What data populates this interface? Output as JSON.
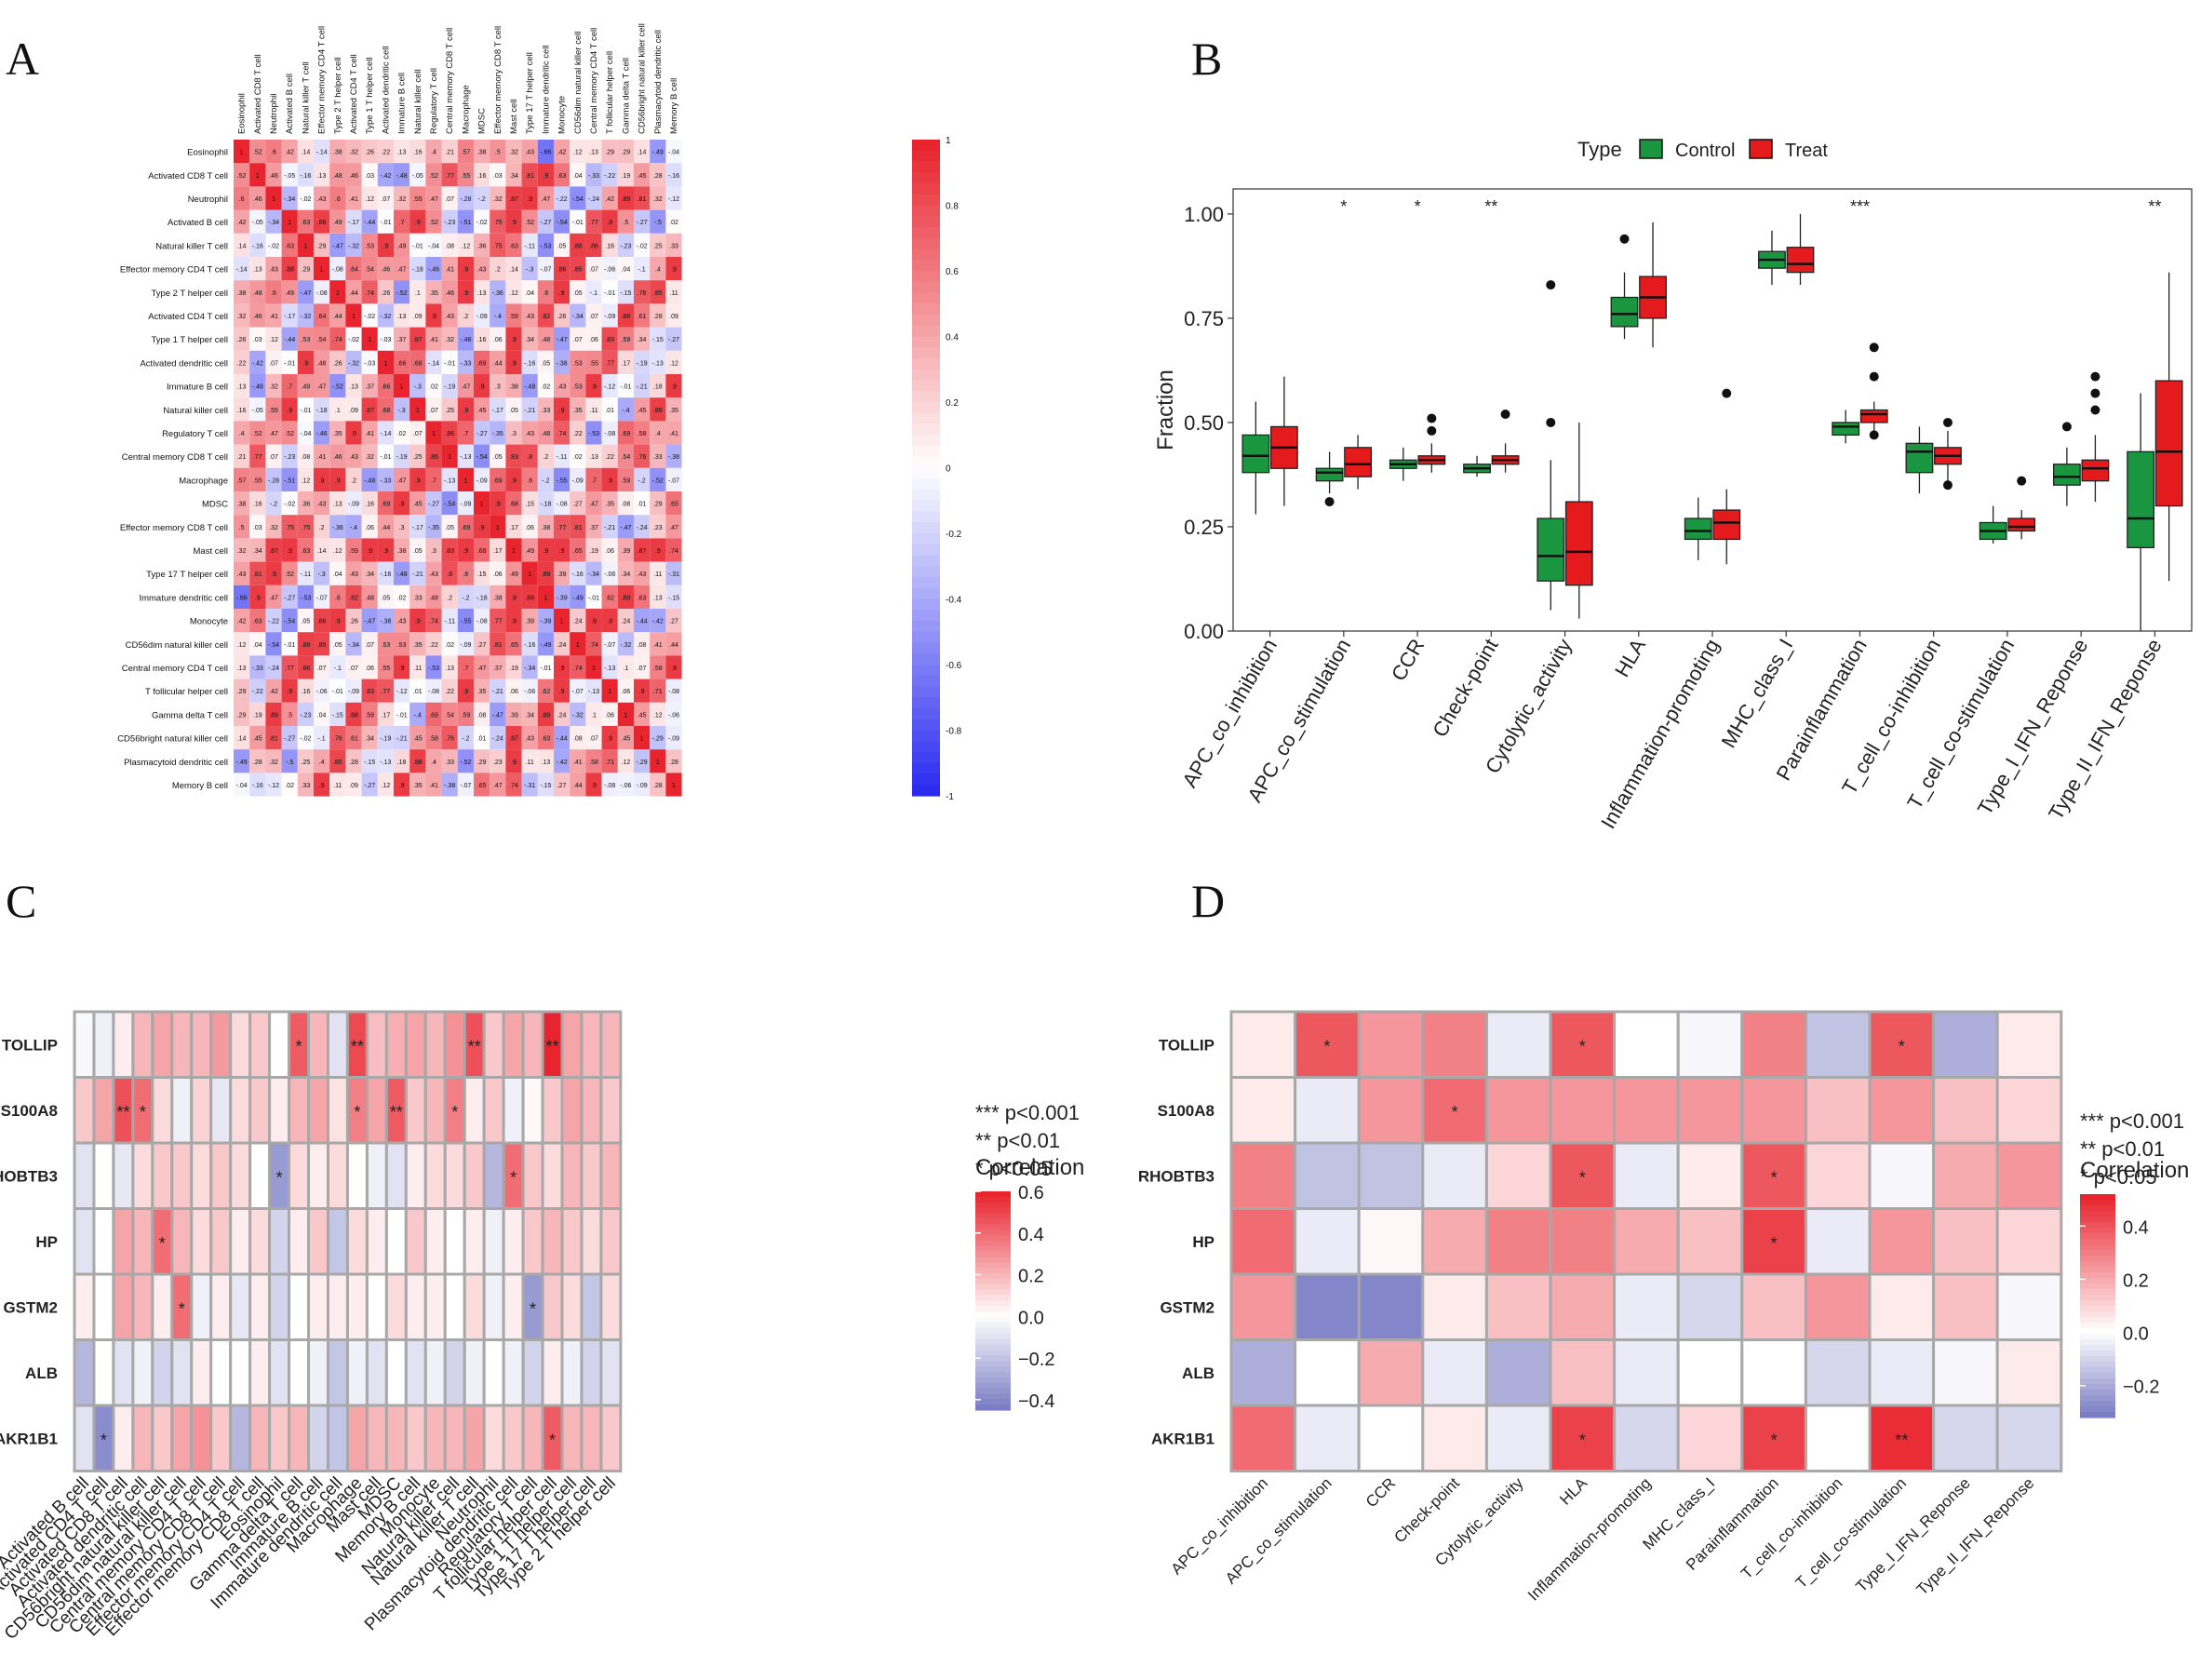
{
  "panels": {
    "a": "A",
    "b": "B",
    "c": "C",
    "d": "D"
  },
  "colors": {
    "pos": "#e8242e",
    "neg": "#2b2bf0",
    "control": "#1a9641",
    "treat": "#e41a1c",
    "lowC": "#7b7ec4"
  },
  "chart_data": [
    {
      "type": "heatmap",
      "panel": "A",
      "title": "",
      "cells": [
        "Eosinophil",
        "Activated CD8 T cell",
        "Neutrophil",
        "Activated B cell",
        "Natural killer T cell",
        "Effector memory CD4 T cell",
        "Type 2 T helper cell",
        "Activated CD4 T cell",
        "Type 1 T helper cell",
        "Activated dendritic cell",
        "Immature  B cell",
        "Natural killer cell",
        "Regulatory T cell",
        "Central memory CD8 T cell",
        "Macrophage",
        "MDSC",
        "Effector memory CD8 T cell",
        "Mast cell",
        "Type 17 T helper cell",
        "Immature dendritic cell",
        "Monocyte",
        "CD56dim natural killer cell",
        "Central memory CD4 T cell",
        "T follicular helper cell",
        "Gamma delta T cell",
        "CD56bright natural killer cell",
        "Plasmacytoid dendritic cell",
        "Memory B cell"
      ],
      "row0_values": [
        1,
        0.52,
        0.6,
        0.42,
        0.14,
        -0.14,
        0.38,
        0.32,
        0.26,
        0.22,
        0.13,
        0.16,
        0.4,
        0.21,
        0.57,
        0.38,
        0.5,
        0.32,
        0.43,
        -0.66,
        0.42,
        0.12,
        0.13,
        0.29,
        0.29,
        0.14,
        -0.49,
        -0.04
      ],
      "legend_ticks": [
        "1",
        "0.8",
        "0.6",
        "0.4",
        "0.2",
        "0",
        "-0.2",
        "-0.4",
        "-0.6",
        "-0.8",
        "-1"
      ],
      "range": [
        -1,
        1
      ]
    },
    {
      "type": "box",
      "panel": "B",
      "ylabel": "Fraction",
      "legend_title": "Type",
      "legend": [
        "Control",
        "Treat"
      ],
      "yticks": [
        "1.00",
        "0.75",
        "0.50",
        "0.25",
        "0.00"
      ],
      "ylim": [
        0,
        1.06
      ],
      "categories": [
        "APC_co_inhibition",
        "APC_co_stimulation",
        "CCR",
        "Check-point",
        "Cytolytic_activity",
        "HLA",
        "Inflammation-promoting",
        "MHC_class_I",
        "Parainflammation",
        "T_cell_co-inhibition",
        "T_cell_co-stimulation",
        "Type_I_IFN_Reponse",
        "Type_II_IFN_Reponse"
      ],
      "significance": [
        "",
        "*",
        "*",
        "**",
        "",
        "",
        "",
        "",
        "***",
        "",
        "",
        "",
        "**"
      ],
      "control": [
        {
          "min": 0.28,
          "q1": 0.38,
          "med": 0.42,
          "q3": 0.47,
          "max": 0.55,
          "out": []
        },
        {
          "min": 0.33,
          "q1": 0.36,
          "med": 0.38,
          "q3": 0.39,
          "max": 0.43,
          "out": [
            0.31
          ]
        },
        {
          "min": 0.36,
          "q1": 0.39,
          "med": 0.4,
          "q3": 0.41,
          "max": 0.44,
          "out": []
        },
        {
          "min": 0.37,
          "q1": 0.38,
          "med": 0.39,
          "q3": 0.4,
          "max": 0.42,
          "out": []
        },
        {
          "min": 0.05,
          "q1": 0.12,
          "med": 0.18,
          "q3": 0.27,
          "max": 0.41,
          "out": [
            0.5,
            0.83
          ]
        },
        {
          "min": 0.7,
          "q1": 0.73,
          "med": 0.76,
          "q3": 0.8,
          "max": 0.86,
          "out": [
            0.94
          ]
        },
        {
          "min": 0.17,
          "q1": 0.22,
          "med": 0.24,
          "q3": 0.27,
          "max": 0.32,
          "out": []
        },
        {
          "min": 0.83,
          "q1": 0.87,
          "med": 0.89,
          "q3": 0.91,
          "max": 0.96,
          "out": []
        },
        {
          "min": 0.45,
          "q1": 0.47,
          "med": 0.49,
          "q3": 0.5,
          "max": 0.53,
          "out": []
        },
        {
          "min": 0.33,
          "q1": 0.38,
          "med": 0.43,
          "q3": 0.45,
          "max": 0.49,
          "out": []
        },
        {
          "min": 0.21,
          "q1": 0.22,
          "med": 0.24,
          "q3": 0.26,
          "max": 0.3,
          "out": []
        },
        {
          "min": 0.3,
          "q1": 0.35,
          "med": 0.37,
          "q3": 0.4,
          "max": 0.44,
          "out": [
            0.49
          ]
        },
        {
          "min": 0.0,
          "q1": 0.2,
          "med": 0.27,
          "q3": 0.43,
          "max": 0.57,
          "out": []
        }
      ],
      "treat": [
        {
          "min": 0.3,
          "q1": 0.39,
          "med": 0.44,
          "q3": 0.49,
          "max": 0.61,
          "out": []
        },
        {
          "min": 0.34,
          "q1": 0.37,
          "med": 0.4,
          "q3": 0.44,
          "max": 0.47,
          "out": []
        },
        {
          "min": 0.38,
          "q1": 0.4,
          "med": 0.41,
          "q3": 0.42,
          "max": 0.45,
          "out": [
            0.48,
            0.51
          ]
        },
        {
          "min": 0.38,
          "q1": 0.4,
          "med": 0.41,
          "q3": 0.42,
          "max": 0.45,
          "out": [
            0.52
          ]
        },
        {
          "min": 0.03,
          "q1": 0.11,
          "med": 0.19,
          "q3": 0.31,
          "max": 0.5,
          "out": []
        },
        {
          "min": 0.68,
          "q1": 0.75,
          "med": 0.8,
          "q3": 0.85,
          "max": 0.98,
          "out": []
        },
        {
          "min": 0.16,
          "q1": 0.22,
          "med": 0.26,
          "q3": 0.29,
          "max": 0.34,
          "out": [
            0.57
          ]
        },
        {
          "min": 0.83,
          "q1": 0.86,
          "med": 0.88,
          "q3": 0.92,
          "max": 1.0,
          "out": []
        },
        {
          "min": 0.48,
          "q1": 0.5,
          "med": 0.52,
          "q3": 0.53,
          "max": 0.55,
          "out": [
            0.47,
            0.61,
            0.68
          ]
        },
        {
          "min": 0.36,
          "q1": 0.4,
          "med": 0.42,
          "q3": 0.44,
          "max": 0.48,
          "out": [
            0.35,
            0.5
          ]
        },
        {
          "min": 0.22,
          "q1": 0.24,
          "med": 0.25,
          "q3": 0.27,
          "max": 0.29,
          "out": [
            0.36
          ]
        },
        {
          "min": 0.31,
          "q1": 0.36,
          "med": 0.39,
          "q3": 0.41,
          "max": 0.47,
          "out": [
            0.53,
            0.57,
            0.61
          ]
        },
        {
          "min": 0.12,
          "q1": 0.3,
          "med": 0.43,
          "q3": 0.6,
          "max": 0.86,
          "out": []
        }
      ]
    },
    {
      "type": "heatmap",
      "panel": "C",
      "rows": [
        "TOLLIP",
        "S100A8",
        "RHOBTB3",
        "HP",
        "GSTM2",
        "ALB",
        "AKR1B1"
      ],
      "cols": [
        "Activated B cell",
        "Activated CD4 T cell",
        "Activated CD8 T cell",
        "Activated dendritic cell",
        "CD56bright natural killer cell",
        "CD56dim natural killer cell",
        "Central memory CD4 T cell",
        "Central memory CD8 T cell",
        "Effector memory CD4 T cell",
        "Effector memory CD8 T cell",
        "Eosinophil",
        "Gamma delta T cell",
        "Immature  B cell",
        "Immature dendritic cell",
        "Macrophage",
        "Mast cell",
        "MDSC",
        "Memory B cell",
        "Monocyte",
        "Natural killer cell",
        "Natural killer T cell",
        "Neutrophil",
        "Plasmacytoid dendritic cell",
        "Regulatory T cell",
        "T follicular helper cell",
        "Type 1 T helper cell",
        "Type 17 T helper cell",
        "Type 2 T helper cell"
      ],
      "values": [
        [
          -0.02,
          -0.05,
          0.05,
          0.2,
          0.25,
          0.2,
          0.2,
          0.28,
          0.1,
          0.15,
          0.0,
          0.45,
          0.2,
          -0.1,
          0.5,
          0.18,
          0.22,
          0.25,
          0.2,
          0.3,
          0.48,
          0.15,
          0.25,
          0.2,
          0.6,
          0.25,
          0.2,
          0.2
        ],
        [
          0.15,
          0.25,
          0.48,
          0.4,
          0.1,
          -0.05,
          0.12,
          -0.08,
          0.1,
          0.15,
          0.05,
          0.2,
          0.25,
          0.08,
          0.35,
          0.25,
          0.45,
          0.15,
          0.2,
          0.35,
          0.05,
          0.15,
          -0.05,
          0.02,
          0.15,
          0.25,
          0.2,
          0.15
        ],
        [
          -0.1,
          0.0,
          -0.08,
          0.1,
          0.15,
          0.15,
          0.1,
          0.15,
          0.1,
          0.0,
          -0.35,
          0.1,
          0.05,
          0.1,
          0.0,
          -0.05,
          -0.1,
          0.05,
          0.1,
          0.1,
          0.15,
          -0.25,
          0.4,
          0.15,
          0.1,
          0.2,
          0.15,
          0.2
        ],
        [
          -0.1,
          0.0,
          0.25,
          0.2,
          0.4,
          0.2,
          0.1,
          0.15,
          0.05,
          0.1,
          -0.15,
          0.05,
          0.15,
          -0.2,
          0.1,
          0.05,
          0.0,
          0.15,
          0.05,
          0.0,
          0.05,
          -0.05,
          0.05,
          0.15,
          0.2,
          0.15,
          0.1,
          0.15
        ],
        [
          0.05,
          0.0,
          0.25,
          0.2,
          0.05,
          0.4,
          -0.05,
          0.05,
          -0.08,
          0.05,
          -0.15,
          0.0,
          0.05,
          0.05,
          0.05,
          0.0,
          0.1,
          0.05,
          0.05,
          0.0,
          0.1,
          -0.05,
          0.05,
          -0.35,
          0.15,
          0.1,
          -0.2,
          0.1
        ],
        [
          -0.25,
          0.0,
          -0.1,
          -0.05,
          -0.15,
          -0.1,
          0.05,
          0.0,
          0.0,
          0.05,
          -0.1,
          0.0,
          -0.05,
          -0.2,
          -0.05,
          -0.1,
          0.0,
          -0.1,
          -0.05,
          -0.15,
          -0.05,
          0.0,
          -0.05,
          -0.15,
          0.05,
          -0.05,
          -0.15,
          -0.1
        ],
        [
          -0.1,
          -0.4,
          0.05,
          0.2,
          0.15,
          0.25,
          0.3,
          0.15,
          -0.25,
          0.2,
          0.15,
          0.2,
          -0.15,
          -0.2,
          0.25,
          0.2,
          0.2,
          0.15,
          0.2,
          0.2,
          0.25,
          0.1,
          0.15,
          0.2,
          0.45,
          0.2,
          0.2,
          0.15
        ]
      ],
      "stars": [
        [
          "TOLLIP",
          11,
          "*"
        ],
        [
          "TOLLIP",
          14,
          "**"
        ],
        [
          "TOLLIP",
          20,
          "**"
        ],
        [
          "TOLLIP",
          24,
          "**"
        ],
        [
          "S100A8",
          2,
          "**"
        ],
        [
          "S100A8",
          3,
          "*"
        ],
        [
          "S100A8",
          14,
          "*"
        ],
        [
          "S100A8",
          16,
          "**"
        ],
        [
          "S100A8",
          19,
          "*"
        ],
        [
          "RHOBTB3",
          10,
          "*"
        ],
        [
          "RHOBTB3",
          22,
          "*"
        ],
        [
          "HP",
          4,
          "*"
        ],
        [
          "GSTM2",
          5,
          "*"
        ],
        [
          "GSTM2",
          23,
          "*"
        ],
        [
          "AKR1B1",
          1,
          "*"
        ],
        [
          "AKR1B1",
          24,
          "*"
        ]
      ],
      "legend_title": "Correlation",
      "legend_ticks": [
        "0.6",
        "0.4",
        "0.2",
        "0.0",
        "−0.2",
        "−0.4"
      ],
      "range": [
        -0.45,
        0.6
      ],
      "pvalue_legend": [
        "*** p<0.001",
        "** p<0.01",
        "* p<0.05"
      ]
    },
    {
      "type": "heatmap",
      "panel": "D",
      "rows": [
        "TOLLIP",
        "S100A8",
        "RHOBTB3",
        "HP",
        "GSTM2",
        "ALB",
        "AKR1B1"
      ],
      "cols": [
        "APC_co_inhibition",
        "APC_co_stimulation",
        "CCR",
        "Check-point",
        "Cytolytic_activity",
        "HLA",
        "Inflammation-promoting",
        "MHC_class_I",
        "Parainflammation",
        "T_cell_co-inhibition",
        "T_cell_co-stimulation",
        "Type_I_IFN_Reponse",
        "Type_II_IFN_Reponse"
      ],
      "values": [
        [
          0.05,
          0.4,
          0.25,
          0.3,
          -0.05,
          0.4,
          0.0,
          -0.02,
          0.3,
          -0.15,
          0.4,
          -0.2,
          0.05
        ],
        [
          0.05,
          -0.05,
          0.25,
          0.35,
          0.25,
          0.25,
          0.25,
          0.25,
          0.25,
          0.15,
          0.25,
          0.15,
          0.1
        ],
        [
          0.3,
          -0.15,
          -0.15,
          -0.05,
          0.1,
          0.4,
          -0.05,
          0.05,
          0.4,
          0.1,
          -0.02,
          0.2,
          0.25
        ],
        [
          0.35,
          -0.05,
          0.02,
          0.2,
          0.3,
          0.3,
          0.2,
          0.15,
          0.45,
          -0.05,
          0.25,
          0.15,
          0.1
        ],
        [
          0.25,
          -0.3,
          -0.3,
          0.05,
          0.15,
          0.2,
          -0.05,
          -0.1,
          0.15,
          0.25,
          0.05,
          0.15,
          -0.02
        ],
        [
          -0.2,
          0.0,
          0.2,
          -0.05,
          -0.2,
          0.15,
          -0.05,
          0.0,
          0.0,
          -0.1,
          -0.05,
          -0.02,
          0.05
        ],
        [
          0.35,
          -0.05,
          0.0,
          0.05,
          -0.05,
          0.45,
          -0.1,
          0.1,
          0.45,
          0.0,
          0.5,
          -0.1,
          -0.1
        ]
      ],
      "stars": [
        [
          "TOLLIP",
          1,
          "*"
        ],
        [
          "TOLLIP",
          5,
          "*"
        ],
        [
          "TOLLIP",
          10,
          "*"
        ],
        [
          "S100A8",
          3,
          "*"
        ],
        [
          "RHOBTB3",
          5,
          "*"
        ],
        [
          "RHOBTB3",
          8,
          "*"
        ],
        [
          "HP",
          8,
          "*"
        ],
        [
          "AKR1B1",
          5,
          "*"
        ],
        [
          "AKR1B1",
          8,
          "*"
        ],
        [
          "AKR1B1",
          10,
          "**"
        ]
      ],
      "legend_title": "Correlation",
      "legend_ticks": [
        "0.4",
        "0.2",
        "0.0",
        "−0.2"
      ],
      "range": [
        -0.32,
        0.52
      ],
      "pvalue_legend": [
        "*** p<0.001",
        "** p<0.01",
        "* p<0.05"
      ]
    }
  ]
}
